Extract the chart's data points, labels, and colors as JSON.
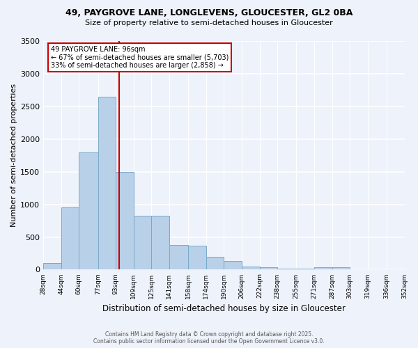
{
  "title1": "49, PAYGROVE LANE, LONGLEVENS, GLOUCESTER, GL2 0BA",
  "title2": "Size of property relative to semi-detached houses in Gloucester",
  "xlabel": "Distribution of semi-detached houses by size in Gloucester",
  "ylabel": "Number of semi-detached properties",
  "footer1": "Contains HM Land Registry data © Crown copyright and database right 2025.",
  "footer2": "Contains public sector information licensed under the Open Government Licence v3.0.",
  "annotation_line1": "49 PAYGROVE LANE: 96sqm",
  "annotation_line2": "← 67% of semi-detached houses are smaller (5,703)",
  "annotation_line3": "33% of semi-detached houses are larger (2,858) →",
  "property_size": 96,
  "bin_edges": [
    28,
    44,
    60,
    77,
    93,
    109,
    125,
    141,
    158,
    174,
    190,
    206,
    222,
    238,
    255,
    271,
    287,
    303,
    319,
    336,
    352
  ],
  "bin_labels": [
    "28sqm",
    "44sqm",
    "60sqm",
    "77sqm",
    "93sqm",
    "109sqm",
    "125sqm",
    "141sqm",
    "158sqm",
    "174sqm",
    "190sqm",
    "206sqm",
    "222sqm",
    "238sqm",
    "255sqm",
    "271sqm",
    "287sqm",
    "303sqm",
    "319sqm",
    "336sqm",
    "352sqm"
  ],
  "bar_heights": [
    100,
    950,
    1800,
    2650,
    1500,
    830,
    830,
    380,
    370,
    200,
    130,
    50,
    40,
    20,
    15,
    40,
    40,
    8,
    5,
    3
  ],
  "bar_color": "#b8d0e8",
  "bar_edge_color": "#7aaaca",
  "red_line_color": "#cc0000",
  "annotation_box_color": "#cc0000",
  "background_color": "#eef2fa",
  "ylim": [
    0,
    3500
  ],
  "yticks": [
    0,
    500,
    1000,
    1500,
    2000,
    2500,
    3000,
    3500
  ]
}
